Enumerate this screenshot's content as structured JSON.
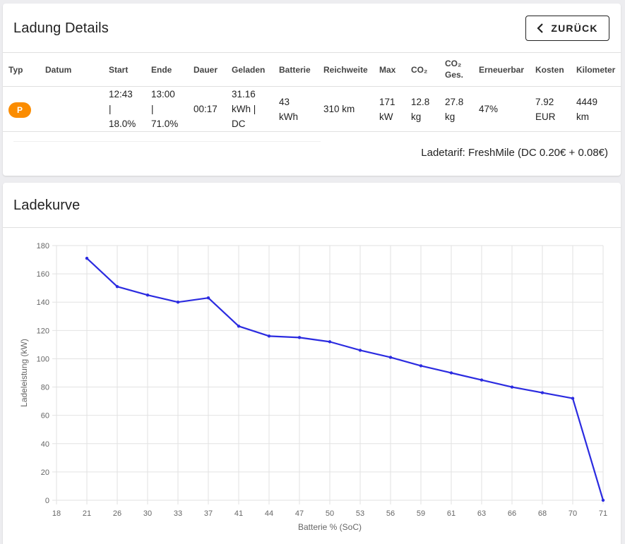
{
  "details": {
    "title": "Ladung Details",
    "back_label": "ZURÜCK",
    "headers": {
      "typ": "Typ",
      "datum": "Datum",
      "start": "Start",
      "ende": "Ende",
      "dauer": "Dauer",
      "geladen": "Geladen",
      "batterie": "Batterie",
      "reichweite": "Reichweite",
      "max": "Max",
      "co2": "CO₂",
      "co2ges_1": "CO₂",
      "co2ges_2": "Ges.",
      "erneuerbar": "Erneuerbar",
      "kosten": "Kosten",
      "kilometer": "Kilometer"
    },
    "row": {
      "typ": "P",
      "datum": "",
      "start": [
        "12:43",
        "|",
        "18.0%"
      ],
      "ende": [
        "13:00",
        "|",
        "71.0%"
      ],
      "dauer": "00:17",
      "geladen": [
        "31.16",
        "kWh |",
        "DC"
      ],
      "batterie": [
        "43",
        "kWh"
      ],
      "reichweite": "310 km",
      "max": [
        "171",
        "kW"
      ],
      "co2": [
        "12.8",
        "kg"
      ],
      "co2ges": [
        "27.8",
        "kg"
      ],
      "erneuerbar": "47%",
      "kosten": [
        "7.92",
        "EUR"
      ],
      "kilometer": [
        "4449",
        "km"
      ]
    },
    "tariff": "Ladetarif: FreshMile (DC 0.20€ + 0.08€)",
    "badge_color": "#fb8c00"
  },
  "curve": {
    "title": "Ladekurve"
  },
  "chart_data": {
    "type": "line",
    "categories": [
      "18",
      "21",
      "26",
      "30",
      "33",
      "37",
      "41",
      "44",
      "47",
      "50",
      "53",
      "56",
      "59",
      "61",
      "63",
      "66",
      "68",
      "70",
      "71"
    ],
    "values": [
      null,
      171,
      151,
      145,
      140,
      143,
      123,
      116,
      115,
      112,
      106,
      101,
      95,
      90,
      85,
      80,
      76,
      72,
      0
    ],
    "ylim": [
      0,
      180
    ],
    "yticks": [
      0,
      20,
      40,
      60,
      80,
      100,
      120,
      140,
      160,
      180
    ],
    "xlabel": "Batterie % (SoC)",
    "ylabel": "Ladeleistung (kW)",
    "color": "#2b2be0",
    "grid": true
  }
}
